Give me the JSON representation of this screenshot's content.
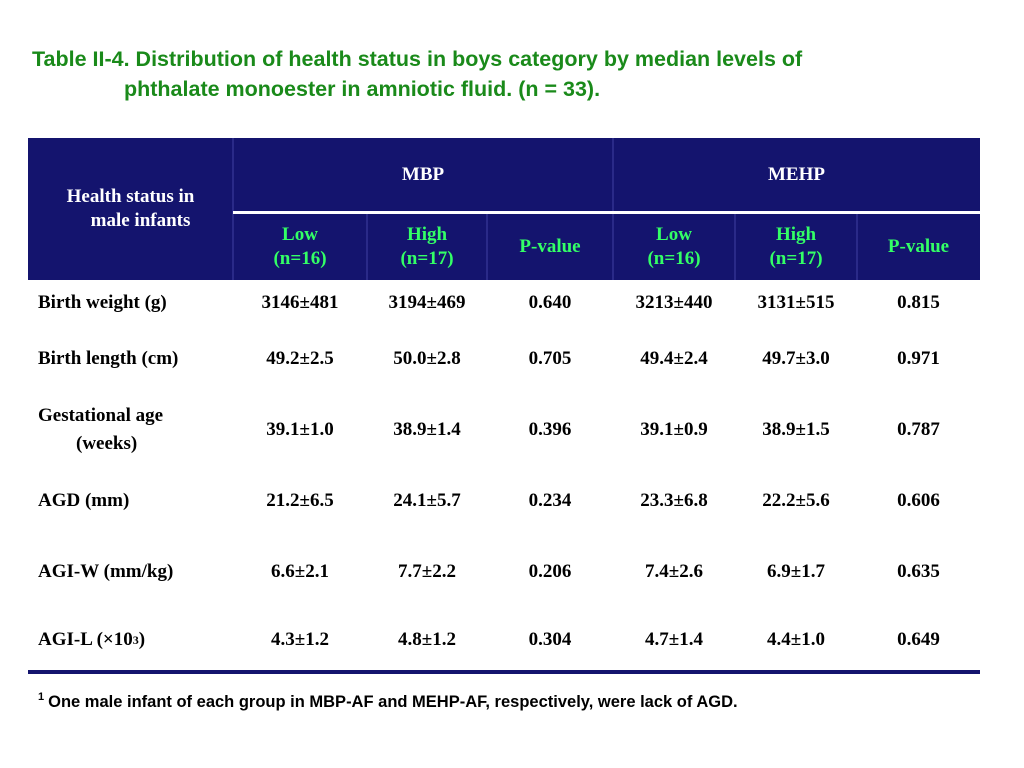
{
  "title": {
    "line1": "Table II-4. Distribution of health status in boys category by median levels of",
    "line2": "phthalate monoester in amniotic fluid. (n = 33)."
  },
  "table": {
    "corner": {
      "line1": "Health status in",
      "line2": "male infants"
    },
    "groups": [
      "MBP",
      "MEHP"
    ],
    "subheaders": [
      {
        "line1": "Low",
        "line2": "(n=16)"
      },
      {
        "line1": "High",
        "line2": "(n=17)"
      },
      {
        "line1": "P-value",
        "line2": ""
      },
      {
        "line1": "Low",
        "line2": "(n=16)"
      },
      {
        "line1": "High",
        "line2": "(n=17)"
      },
      {
        "line1": "P-value",
        "line2": ""
      }
    ],
    "rows": [
      {
        "label1": "Birth weight (g)",
        "label2": "",
        "values": [
          "3146±481",
          "3194±469",
          "0.640",
          "3213±440",
          "3131±515",
          "0.815"
        ]
      },
      {
        "label1": "Birth length (cm)",
        "label2": "",
        "values": [
          "49.2±2.5",
          "50.0±2.8",
          "0.705",
          "49.4±2.4",
          "49.7±3.0",
          "0.971"
        ]
      },
      {
        "label1": "Gestational age",
        "label2": "(weeks)",
        "values": [
          "39.1±1.0",
          "38.9±1.4",
          "0.396",
          "39.1±0.9",
          "38.9±1.5",
          "0.787"
        ]
      },
      {
        "label1": "AGD (mm)",
        "label2": "",
        "values": [
          "21.2±6.5",
          "24.1±5.7",
          "0.234",
          "23.3±6.8",
          "22.2±5.6",
          "0.606"
        ]
      },
      {
        "label1": "AGI-W (mm/kg)",
        "label2": "",
        "values": [
          "6.6±2.1",
          "7.7±2.2",
          "0.206",
          "7.4±2.6",
          "6.9±1.7",
          "0.635"
        ]
      },
      {
        "label1": "AGI-L (×10",
        "label_sup": "3",
        "label_after": ")",
        "label2": "",
        "values": [
          "4.3±1.2",
          "4.8±1.2",
          "0.304",
          "4.7±1.4",
          "4.4±1.0",
          "0.649"
        ]
      }
    ]
  },
  "footnote": {
    "marker": "1",
    "text": "One male infant of each group in MBP-AF and MEHP-AF, respectively, were lack of AGD."
  },
  "colors": {
    "title": "#1a8a1a",
    "header_bg": "#14146e",
    "subheader_text": "#33ff66",
    "header_text": "#ffffff"
  }
}
